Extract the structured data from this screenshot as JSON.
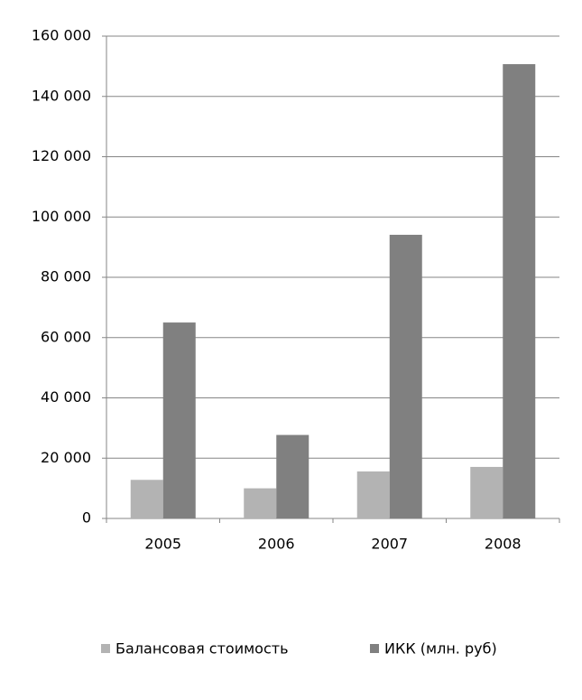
{
  "chart_data": {
    "type": "bar",
    "categories": [
      "2005",
      "2006",
      "2007",
      "2008"
    ],
    "series": [
      {
        "name": "Балансовая стоимость",
        "color": "#b3b3b3",
        "values": [
          12800,
          10000,
          15600,
          17100
        ]
      },
      {
        "name": "ИКК (млн. руб)",
        "color": "#808080",
        "values": [
          65000,
          27700,
          94100,
          150700
        ]
      }
    ],
    "ylim": [
      0,
      160000
    ],
    "yticks": [
      0,
      {
        "value": 20000,
        "label": "20 000"
      },
      {
        "value": 40000,
        "label": "40 000"
      },
      {
        "value": 60000,
        "label": "60 000"
      },
      {
        "value": 80000,
        "label": "80 000"
      },
      {
        "value": 100000,
        "label": "100 000"
      },
      {
        "value": 120000,
        "label": "120 000"
      },
      {
        "value": 140000,
        "label": "140 000"
      },
      {
        "value": 160000,
        "label": "160 000"
      }
    ],
    "grid": true,
    "legend": "bottom"
  }
}
